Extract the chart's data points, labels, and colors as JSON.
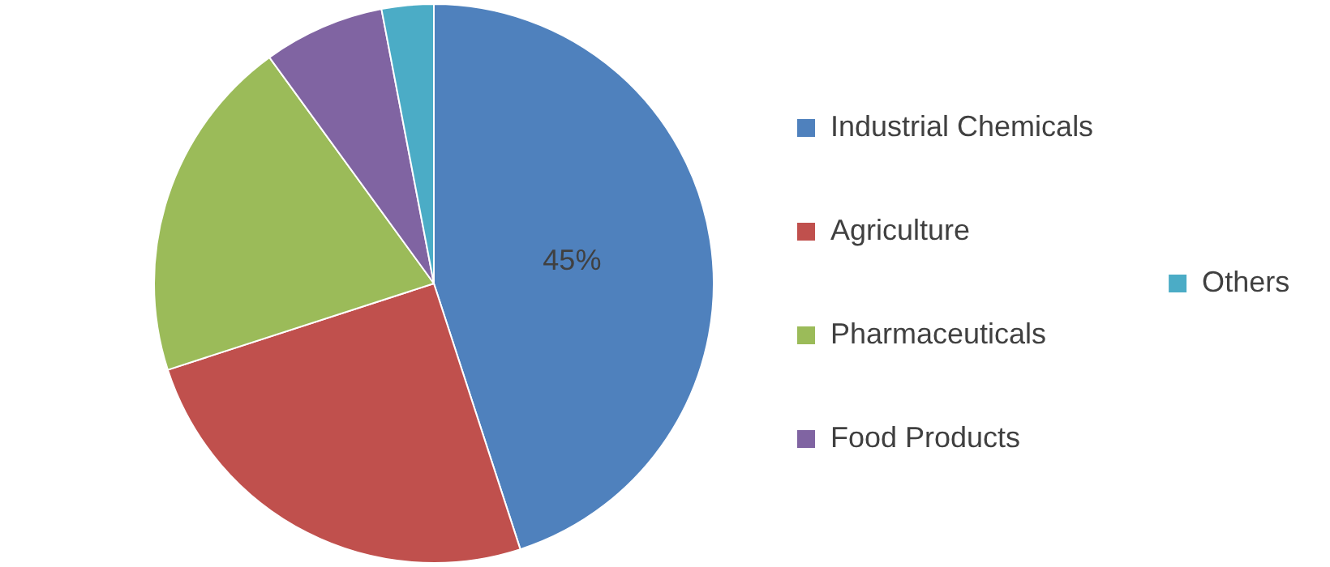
{
  "chart_data": {
    "type": "pie",
    "categories": [
      "Industrial Chemicals",
      "Agriculture",
      "Pharmaceuticals",
      "Food Products",
      "Others"
    ],
    "values": [
      45,
      25,
      20,
      7,
      3
    ],
    "colors": [
      "#4f81bd",
      "#c0504d",
      "#9bbb59",
      "#8064a2",
      "#4bacc6"
    ],
    "value_labels": [
      "45%",
      null,
      null,
      null,
      null
    ],
    "legend": "right"
  }
}
